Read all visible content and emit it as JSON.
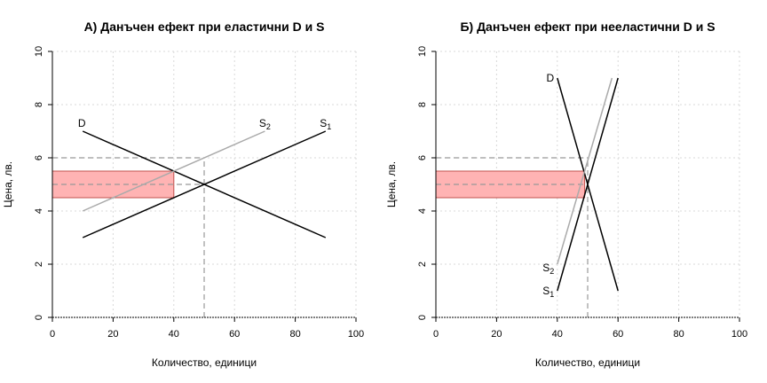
{
  "chart_data": [
    {
      "type": "line",
      "title": "А) Данъчен ефект при еластични D и S",
      "xlabel": "Количество, единици",
      "ylabel": "Цена, лв.",
      "xlim": [
        0,
        100
      ],
      "ylim": [
        0,
        10
      ],
      "xticks": [
        "0",
        "20",
        "40",
        "60",
        "80",
        "100"
      ],
      "yticks": [
        "0",
        "2",
        "4",
        "6",
        "8",
        "10"
      ],
      "grid": true,
      "series": [
        {
          "name": "D",
          "label_main": "D",
          "label_sub": "",
          "color": "#000000",
          "x": [
            10,
            90
          ],
          "y": [
            7,
            3
          ]
        },
        {
          "name": "S1",
          "label_main": "S",
          "label_sub": "1",
          "color": "#000000",
          "x": [
            10,
            90
          ],
          "y": [
            3,
            7
          ]
        },
        {
          "name": "S2",
          "label_main": "S",
          "label_sub": "2",
          "color": "#aaaaaa",
          "x": [
            10,
            70
          ],
          "y": [
            4,
            7
          ]
        }
      ],
      "tax_rect": {
        "x": [
          0,
          40
        ],
        "y": [
          4.5,
          5.5
        ],
        "fill": "#ffb3b3",
        "stroke": "#c0504d"
      },
      "dashed": {
        "h": [
          {
            "y": 6,
            "x": [
              0,
              50
            ]
          },
          {
            "y": 5,
            "x": [
              0,
              50
            ]
          }
        ],
        "v": [
          {
            "x": 50,
            "y": [
              0,
              6
            ]
          }
        ]
      }
    },
    {
      "type": "line",
      "title": "Б) Данъчен ефект при нееластични D и S",
      "xlabel": "Количество, единици",
      "ylabel": "Цена, лв.",
      "xlim": [
        0,
        100
      ],
      "ylim": [
        0,
        10
      ],
      "xticks": [
        "0",
        "20",
        "40",
        "60",
        "80",
        "100"
      ],
      "yticks": [
        "0",
        "2",
        "4",
        "6",
        "8",
        "10"
      ],
      "grid": true,
      "series": [
        {
          "name": "D",
          "label_main": "D",
          "label_sub": "",
          "color": "#000000",
          "x": [
            40,
            60
          ],
          "y": [
            9,
            1
          ]
        },
        {
          "name": "S1",
          "label_main": "S",
          "label_sub": "1",
          "color": "#000000",
          "x": [
            40,
            60
          ],
          "y": [
            1,
            9
          ]
        },
        {
          "name": "S2",
          "label_main": "S",
          "label_sub": "2",
          "color": "#aaaaaa",
          "x": [
            40,
            58
          ],
          "y": [
            2,
            9
          ]
        }
      ],
      "tax_rect": {
        "x": [
          0,
          49
        ],
        "y": [
          4.5,
          5.5
        ],
        "fill": "#ffb3b3",
        "stroke": "#c0504d"
      },
      "dashed": {
        "h": [
          {
            "y": 6,
            "x": [
              0,
              50
            ]
          },
          {
            "y": 5,
            "x": [
              0,
              50
            ]
          }
        ],
        "v": [
          {
            "x": 50,
            "y": [
              0,
              6
            ]
          }
        ]
      }
    }
  ]
}
